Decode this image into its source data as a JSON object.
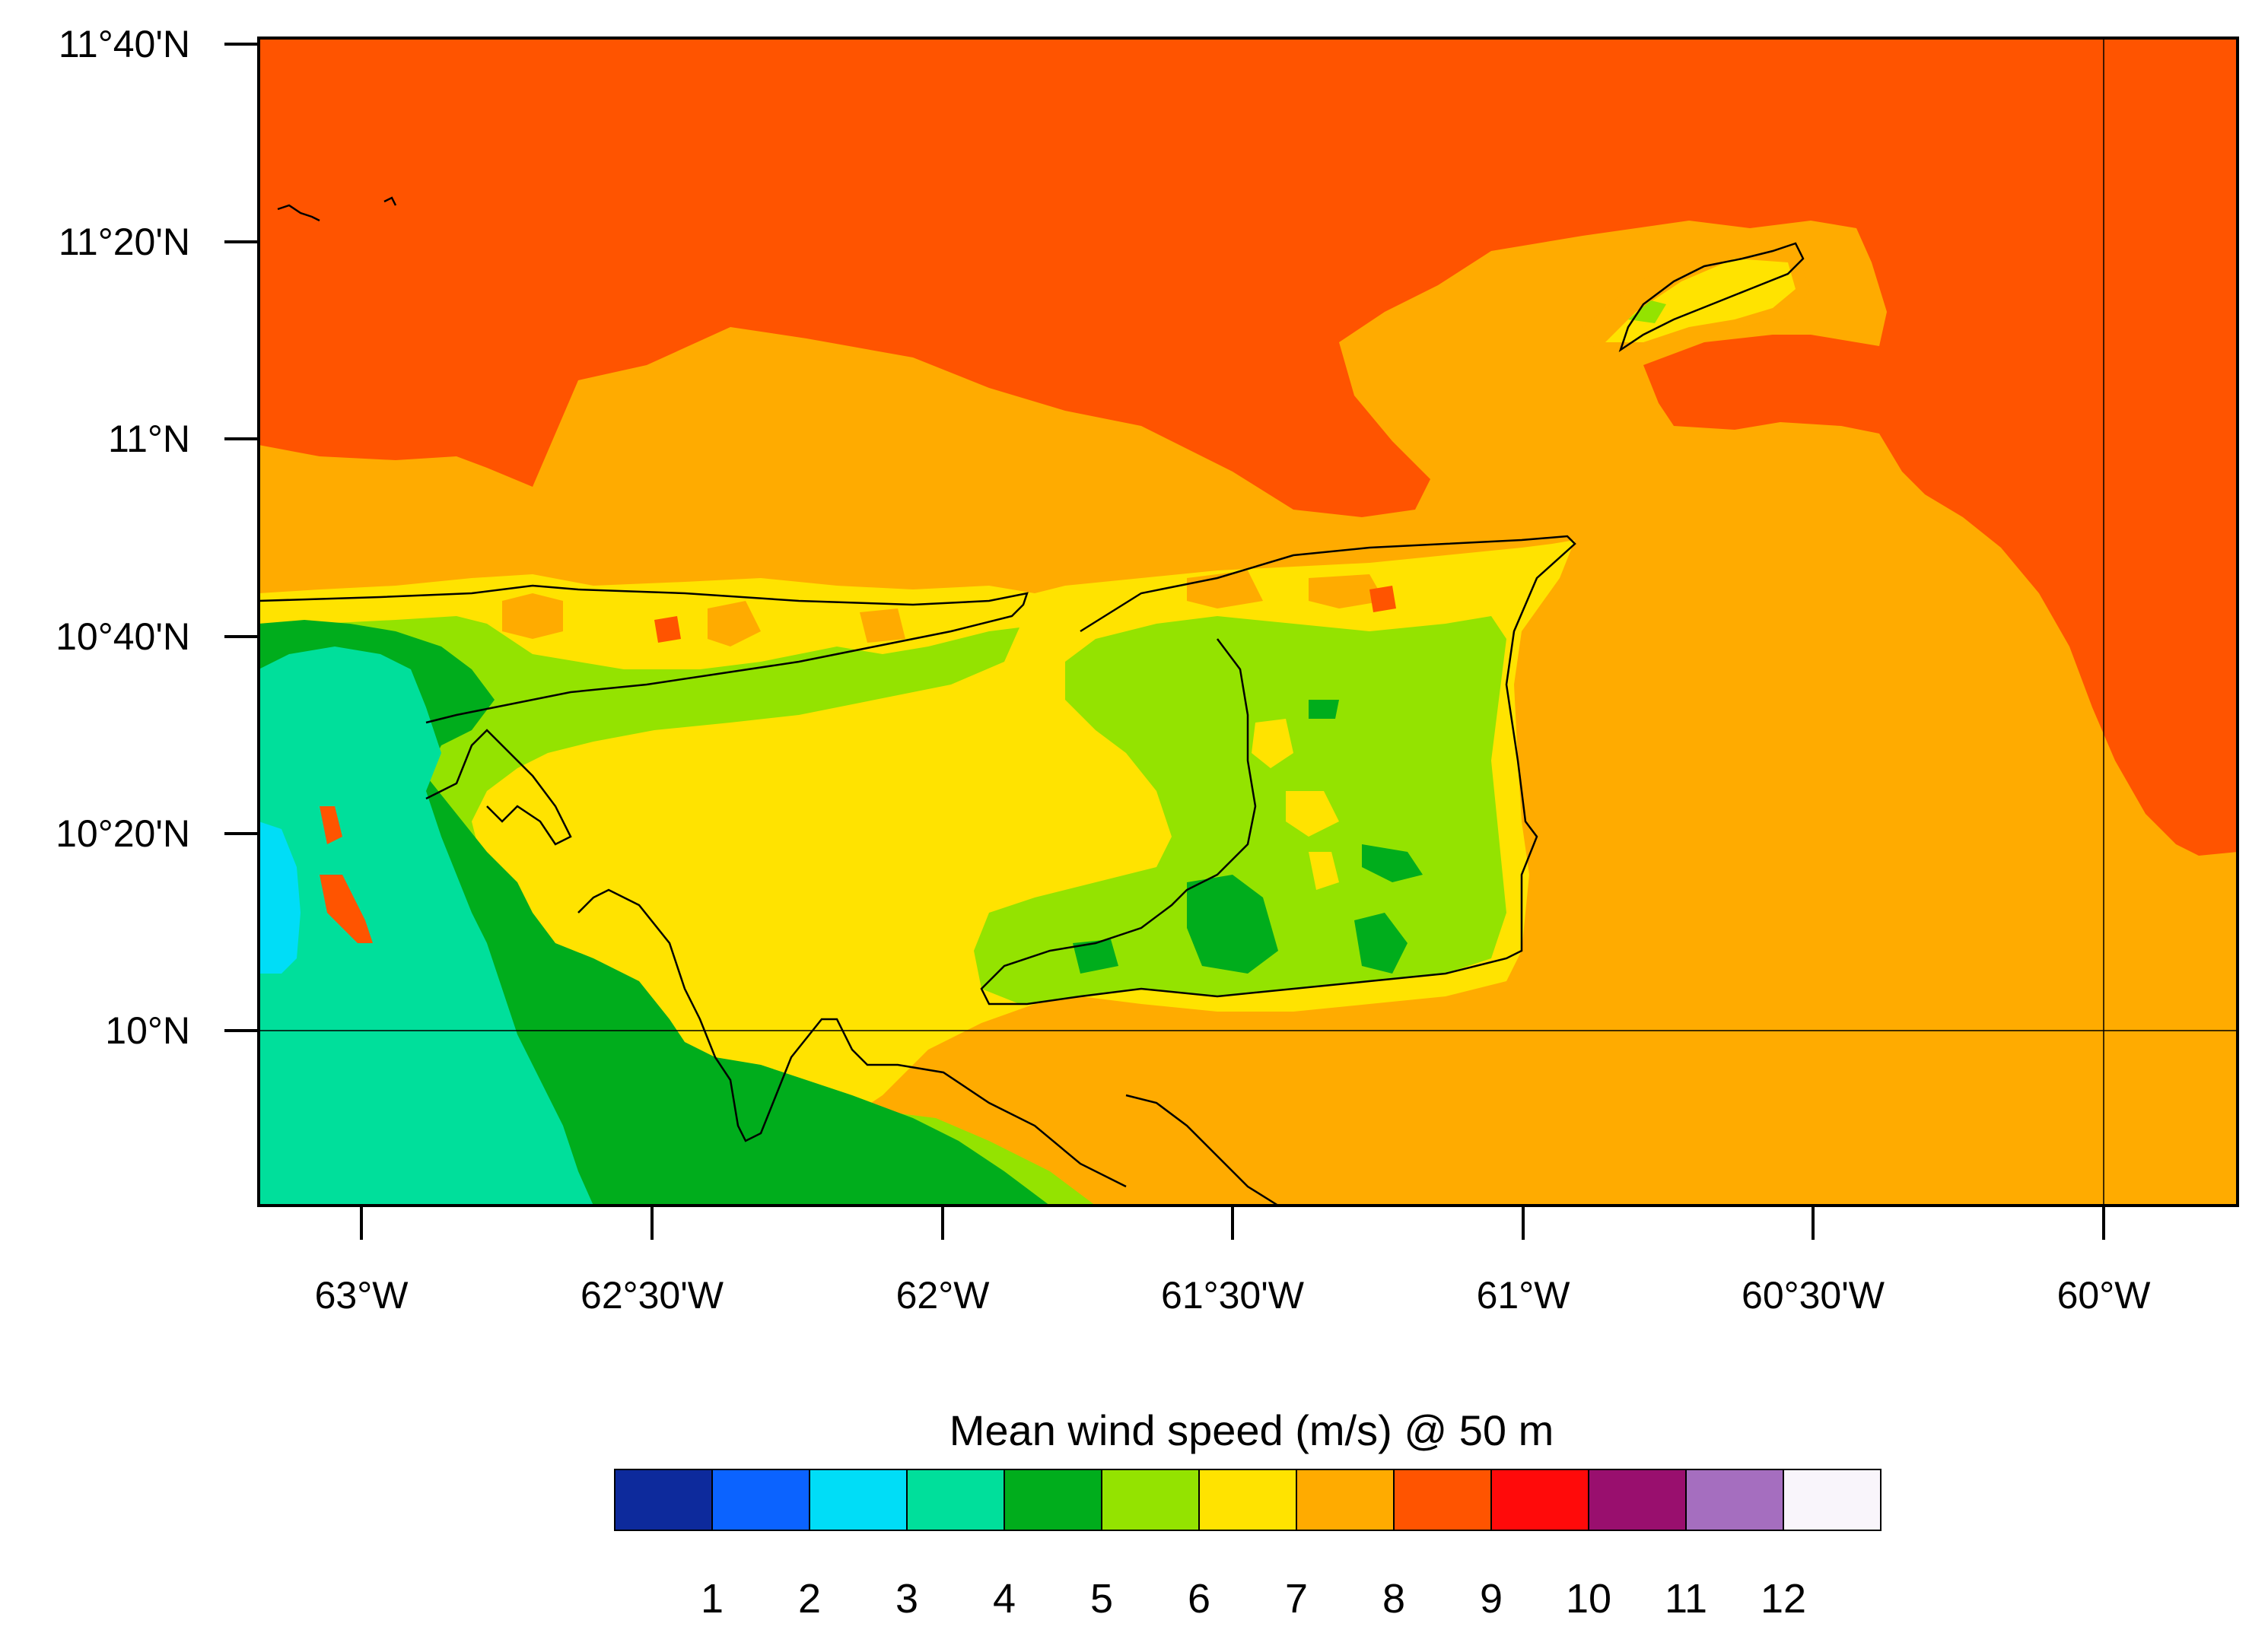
{
  "map": {
    "y_axis_labels": [
      "11°40'N",
      "11°20'N",
      "11°N",
      "10°40'N",
      "10°20'N",
      "10°N"
    ],
    "x_axis_labels": [
      "63°W",
      "62°30'W",
      "62°W",
      "61°30'W",
      "61°W",
      "60°30'W",
      "60°W"
    ],
    "lat_range": [
      "10°N",
      "11°40'N"
    ],
    "lon_range": [
      "63°W",
      "60°W"
    ],
    "gridlines": [
      "10°N",
      "60°W"
    ]
  },
  "legend": {
    "title": "Mean wind speed (m/s) @ 50 m",
    "ticks": [
      "1",
      "2",
      "3",
      "4",
      "5",
      "6",
      "7",
      "8",
      "9",
      "10",
      "11",
      "12"
    ],
    "colors": [
      "#0d2a9c",
      "#0b63ff",
      "#00ddf7",
      "#00df9b",
      "#00ad1c",
      "#94e300",
      "#ffe300",
      "#ffab00",
      "#ff5400",
      "#ff0a0a",
      "#990f6e",
      "#a56ebf",
      "#f9f5fb"
    ]
  }
}
